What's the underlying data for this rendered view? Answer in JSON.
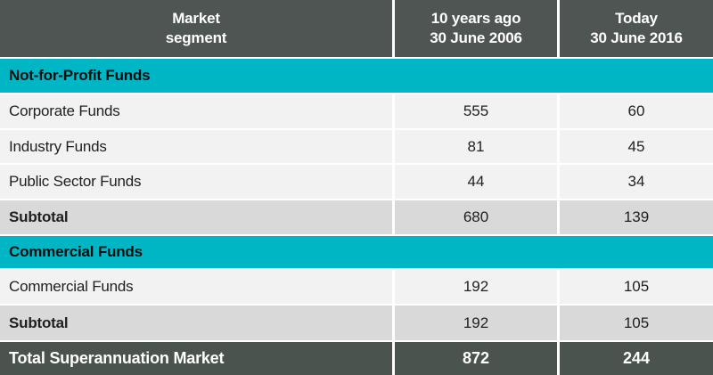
{
  "colors": {
    "header_bg": "#4f5552",
    "total_bg": "#4b534e",
    "teal": "#00b5c4",
    "row_bg": "#f2f2f2",
    "subtotal_bg": "#d9d9d9",
    "text_dark": "#1f1f1f",
    "sep": "#ffffff"
  },
  "header": {
    "market_line1": "Market",
    "market_line2": "segment",
    "ago_line1": "10 years ago",
    "ago_line2": "30 June 2006",
    "today_line1": "Today",
    "today_line2": "30 June 2016"
  },
  "sections": [
    {
      "title": "Not-for-Profit Funds"
    },
    {
      "title": "Commercial Funds"
    }
  ],
  "rows": [
    {
      "label": "Corporate Funds",
      "v2006": "555",
      "v2016": "60"
    },
    {
      "label": "Industry Funds",
      "v2006": "81",
      "v2016": "45"
    },
    {
      "label": "Public Sector Funds",
      "v2006": "44",
      "v2016": "34"
    },
    {
      "label": "Subtotal",
      "v2006": "680",
      "v2016": "139"
    },
    {
      "label": "Commercial Funds",
      "v2006": "192",
      "v2016": "105"
    },
    {
      "label": "Subtotal",
      "v2006": "192",
      "v2016": "105"
    }
  ],
  "total": {
    "label": "Total Superannuation Market",
    "v2006": "872",
    "v2016": "244"
  },
  "chart_data": {
    "type": "table",
    "columns": [
      "Market segment",
      "10 years ago 30 June 2006",
      "Today 30 June 2016"
    ],
    "sections": [
      {
        "title": "Not-for-Profit Funds",
        "rows": [
          {
            "label": "Corporate Funds",
            "y2006": 555,
            "y2016": 60
          },
          {
            "label": "Industry Funds",
            "y2006": 81,
            "y2016": 45
          },
          {
            "label": "Public Sector Funds",
            "y2006": 44,
            "y2016": 34
          },
          {
            "label": "Subtotal",
            "y2006": 680,
            "y2016": 139
          }
        ]
      },
      {
        "title": "Commercial Funds",
        "rows": [
          {
            "label": "Commercial Funds",
            "y2006": 192,
            "y2016": 105
          },
          {
            "label": "Subtotal",
            "y2006": 192,
            "y2016": 105
          }
        ]
      }
    ],
    "total": {
      "label": "Total Superannuation Market",
      "y2006": 872,
      "y2016": 244
    }
  }
}
